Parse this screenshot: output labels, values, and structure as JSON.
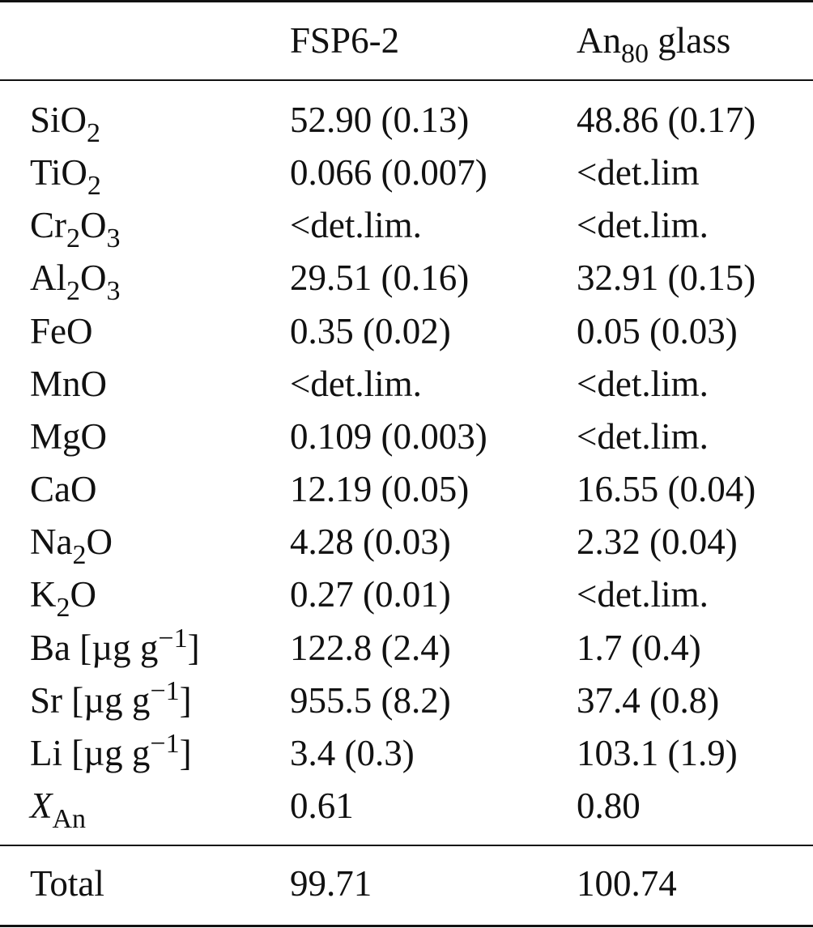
{
  "table": {
    "header": [
      "FSP6-2",
      [
        {
          "t": "An"
        },
        {
          "sub": "80"
        },
        {
          "t": " glass"
        }
      ]
    ],
    "rows": [
      {
        "label": [
          {
            "t": "SiO"
          },
          {
            "sub": "2"
          }
        ],
        "cells": [
          "52.90 (0.13)",
          "48.86 (0.17)"
        ]
      },
      {
        "label": [
          {
            "t": "TiO"
          },
          {
            "sub": "2"
          }
        ],
        "cells": [
          "0.066 (0.007)",
          "<det.lim"
        ]
      },
      {
        "label": [
          {
            "t": "Cr"
          },
          {
            "sub": "2"
          },
          {
            "t": "O"
          },
          {
            "sub": "3"
          }
        ],
        "cells": [
          "<det.lim.",
          "<det.lim."
        ]
      },
      {
        "label": [
          {
            "t": "Al"
          },
          {
            "sub": "2"
          },
          {
            "t": "O"
          },
          {
            "sub": "3"
          }
        ],
        "cells": [
          "29.51 (0.16)",
          "32.91 (0.15)"
        ]
      },
      {
        "label": "FeO",
        "cells": [
          "0.35 (0.02)",
          "0.05 (0.03)"
        ]
      },
      {
        "label": "MnO",
        "cells": [
          "<det.lim.",
          "<det.lim."
        ]
      },
      {
        "label": "MgO",
        "cells": [
          "0.109 (0.003)",
          "<det.lim."
        ]
      },
      {
        "label": "CaO",
        "cells": [
          "12.19 (0.05)",
          "16.55 (0.04)"
        ]
      },
      {
        "label": [
          {
            "t": "Na"
          },
          {
            "sub": "2"
          },
          {
            "t": "O"
          }
        ],
        "cells": [
          "4.28 (0.03)",
          "2.32 (0.04)"
        ]
      },
      {
        "label": [
          {
            "t": "K"
          },
          {
            "sub": "2"
          },
          {
            "t": "O"
          }
        ],
        "cells": [
          "0.27 (0.01)",
          "<det.lim."
        ]
      },
      {
        "label": [
          {
            "t": "Ba [µg g"
          },
          {
            "sup": "−1"
          },
          {
            "t": "]"
          }
        ],
        "cells": [
          "122.8 (2.4)",
          "1.7 (0.4)"
        ]
      },
      {
        "label": [
          {
            "t": "Sr [µg g"
          },
          {
            "sup": "−1"
          },
          {
            "t": "]"
          }
        ],
        "cells": [
          "955.5 (8.2)",
          "37.4 (0.8)"
        ]
      },
      {
        "label": [
          {
            "t": "Li [µg g"
          },
          {
            "sup": "−1"
          },
          {
            "t": "]"
          }
        ],
        "cells": [
          "3.4 (0.3)",
          "103.1 (1.9)"
        ]
      },
      {
        "label": [
          {
            "i": "X"
          },
          {
            "sub": "An"
          }
        ],
        "cells": [
          "0.61",
          "0.80"
        ]
      }
    ],
    "total": {
      "label": "Total",
      "cells": [
        "99.71",
        "100.74"
      ]
    }
  }
}
